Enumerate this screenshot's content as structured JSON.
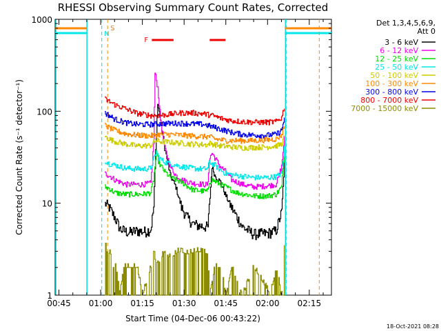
{
  "chart_data": {
    "type": "line",
    "title": "RHESSI Observing Summary Count Rates, Corrected",
    "xlabel": "Start Time (04-Dec-06 00:43:22)",
    "ylabel": "Corrected Count Rate (s⁻¹ detector⁻¹)",
    "y_scale": "log",
    "ylim": [
      1,
      1000
    ],
    "xlim_minutes": [
      -1.37,
      97.97
    ],
    "x_tick_labels": [
      "00:45",
      "01:00",
      "01:15",
      "01:30",
      "01:45",
      "02:00",
      "02:15"
    ],
    "x_tick_minutes": [
      0,
      15,
      30,
      45,
      60,
      75,
      90
    ],
    "y_tick_labels": [
      "1",
      "10",
      "100",
      "1000"
    ],
    "y_tick_values": [
      1,
      10,
      100,
      1000
    ],
    "legend_header": [
      "Det 1,3,4,5,6,9,",
      "Att 0"
    ],
    "legend_placement": "right",
    "timestamp": "18-Oct-2021 08:28",
    "markers": {
      "S": {
        "label": "S",
        "time_minutes": 17.5,
        "color": "#e87a1c"
      },
      "N": {
        "label": "N",
        "time_minutes": 15.5,
        "color": "#00dede"
      },
      "F": {
        "label": "F",
        "color": "#ee0000",
        "intervals_minutes": [
          [
            33.4,
            41.2
          ],
          [
            54.2,
            59.9
          ]
        ]
      },
      "dashed_orange_minutes": [
        17.5,
        93.6
      ],
      "dashed_cyan_minutes": [
        15.4,
        81.8
      ]
    },
    "data_gap_minutes": [
      -1.37,
      16.5
    ],
    "data_end_minutes": 81.2,
    "series": [
      {
        "name": "3 - 6 keV",
        "color": "#000000",
        "points": [
          [
            16.5,
            10
          ],
          [
            18,
            9
          ],
          [
            20,
            7
          ],
          [
            22,
            5.2
          ],
          [
            25,
            4.8
          ],
          [
            28,
            5
          ],
          [
            31,
            4.9
          ],
          [
            33,
            5.2
          ],
          [
            34,
            9
          ],
          [
            35,
            60
          ],
          [
            35.5,
            120
          ],
          [
            36.5,
            80
          ],
          [
            38,
            40
          ],
          [
            40,
            20
          ],
          [
            42,
            15
          ],
          [
            44,
            9
          ],
          [
            46,
            7
          ],
          [
            48,
            6
          ],
          [
            50,
            5.7
          ],
          [
            52,
            5.6
          ],
          [
            53.5,
            5.5
          ],
          [
            54,
            9
          ],
          [
            55,
            25
          ],
          [
            56,
            20
          ],
          [
            58,
            17
          ],
          [
            60,
            12
          ],
          [
            62,
            9
          ],
          [
            64,
            7
          ],
          [
            66,
            5.5
          ],
          [
            70,
            4.6
          ],
          [
            75,
            4.7
          ],
          [
            78,
            5
          ],
          [
            80,
            8
          ],
          [
            81.2,
            35
          ]
        ]
      },
      {
        "name": "6 - 12 keV",
        "color": "#ee00ee",
        "points": [
          [
            16.5,
            21
          ],
          [
            18,
            20
          ],
          [
            20,
            18
          ],
          [
            24,
            16
          ],
          [
            30,
            16
          ],
          [
            33,
            16.5
          ],
          [
            34,
            45
          ],
          [
            34.5,
            260
          ],
          [
            35.5,
            180
          ],
          [
            36.5,
            80
          ],
          [
            38,
            40
          ],
          [
            40,
            25
          ],
          [
            42,
            20
          ],
          [
            44,
            18
          ],
          [
            48,
            16.5
          ],
          [
            52,
            16
          ],
          [
            53.5,
            16
          ],
          [
            54,
            30
          ],
          [
            55,
            35
          ],
          [
            58,
            25
          ],
          [
            60,
            22
          ],
          [
            62,
            18
          ],
          [
            66,
            16
          ],
          [
            70,
            15
          ],
          [
            75,
            15.5
          ],
          [
            78,
            16
          ],
          [
            80,
            25
          ],
          [
            81.2,
            60
          ]
        ]
      },
      {
        "name": "12 - 25 keV",
        "color": "#00dd00",
        "points": [
          [
            16.5,
            15
          ],
          [
            18,
            14.5
          ],
          [
            20,
            13
          ],
          [
            24,
            12.5
          ],
          [
            30,
            12.5
          ],
          [
            33,
            13
          ],
          [
            34,
            18
          ],
          [
            35,
            35
          ],
          [
            36,
            27
          ],
          [
            38,
            22
          ],
          [
            40,
            19
          ],
          [
            44,
            17
          ],
          [
            48,
            14
          ],
          [
            52,
            13.5
          ],
          [
            53.5,
            13.5
          ],
          [
            54,
            17
          ],
          [
            55,
            18
          ],
          [
            58,
            16
          ],
          [
            60,
            15
          ],
          [
            64,
            13
          ],
          [
            70,
            12
          ],
          [
            75,
            12
          ],
          [
            78,
            12.5
          ],
          [
            80,
            15
          ],
          [
            81.2,
            45
          ]
        ]
      },
      {
        "name": "25 - 50 keV",
        "color": "#00e8e8",
        "points": [
          [
            16.5,
            29
          ],
          [
            18,
            27
          ],
          [
            20,
            26
          ],
          [
            24,
            24
          ],
          [
            30,
            23.5
          ],
          [
            33,
            24
          ],
          [
            34,
            30
          ],
          [
            35,
            36
          ],
          [
            36,
            31
          ],
          [
            38,
            28
          ],
          [
            40,
            27
          ],
          [
            44,
            25
          ],
          [
            48,
            24
          ],
          [
            52,
            23.5
          ],
          [
            53.5,
            24
          ],
          [
            54,
            28
          ],
          [
            56,
            26
          ],
          [
            58,
            23
          ],
          [
            60,
            21
          ],
          [
            64,
            20
          ],
          [
            70,
            19
          ],
          [
            75,
            19
          ],
          [
            78,
            19.5
          ],
          [
            80,
            21
          ],
          [
            81.2,
            45
          ]
        ]
      },
      {
        "name": "50 - 100 keV",
        "color": "#cccc00",
        "points": [
          [
            16.5,
            53
          ],
          [
            18,
            50
          ],
          [
            20,
            47
          ],
          [
            24,
            44
          ],
          [
            28,
            42
          ],
          [
            33,
            42.5
          ],
          [
            34,
            46
          ],
          [
            35,
            48
          ],
          [
            36,
            47
          ],
          [
            40,
            46
          ],
          [
            44,
            45
          ],
          [
            48,
            44
          ],
          [
            52,
            43.5
          ],
          [
            53.5,
            43
          ],
          [
            54,
            45
          ],
          [
            58,
            42
          ],
          [
            62,
            41
          ],
          [
            66,
            40
          ],
          [
            70,
            40.5
          ],
          [
            75,
            41
          ],
          [
            78,
            42
          ],
          [
            80,
            44
          ],
          [
            81.2,
            55
          ]
        ]
      },
      {
        "name": "100 - 300 keV",
        "color": "#ff8800",
        "points": [
          [
            16.5,
            70
          ],
          [
            18,
            66
          ],
          [
            20,
            62
          ],
          [
            24,
            57
          ],
          [
            28,
            55
          ],
          [
            33,
            54
          ],
          [
            36,
            56
          ],
          [
            40,
            56
          ],
          [
            44,
            55
          ],
          [
            48,
            54
          ],
          [
            52,
            53
          ],
          [
            54,
            53
          ],
          [
            56,
            50
          ],
          [
            60,
            48
          ],
          [
            64,
            48
          ],
          [
            70,
            48
          ],
          [
            75,
            49
          ],
          [
            78,
            50
          ],
          [
            80,
            55
          ],
          [
            81.2,
            75
          ]
        ]
      },
      {
        "name": "300 - 800 keV",
        "color": "#0000ee",
        "points": [
          [
            16.5,
            96
          ],
          [
            18,
            90
          ],
          [
            20,
            82
          ],
          [
            24,
            75
          ],
          [
            28,
            72
          ],
          [
            33,
            72
          ],
          [
            36,
            73
          ],
          [
            40,
            74
          ],
          [
            44,
            74
          ],
          [
            48,
            73
          ],
          [
            52,
            72
          ],
          [
            55,
            68
          ],
          [
            58,
            64
          ],
          [
            62,
            59
          ],
          [
            66,
            56
          ],
          [
            70,
            55
          ],
          [
            75,
            55
          ],
          [
            78,
            56
          ],
          [
            80,
            62
          ],
          [
            81.2,
            90
          ]
        ]
      },
      {
        "name": "800 - 7000 keV",
        "color": "#ee0000",
        "points": [
          [
            16.5,
            135
          ],
          [
            18,
            128
          ],
          [
            20,
            118
          ],
          [
            24,
            106
          ],
          [
            28,
            95
          ],
          [
            33,
            90
          ],
          [
            36,
            90
          ],
          [
            40,
            93
          ],
          [
            44,
            96
          ],
          [
            48,
            96
          ],
          [
            52,
            94
          ],
          [
            55,
            90
          ],
          [
            58,
            84
          ],
          [
            62,
            79
          ],
          [
            66,
            77
          ],
          [
            70,
            76
          ],
          [
            75,
            76
          ],
          [
            78,
            77
          ],
          [
            80,
            85
          ],
          [
            81.2,
            120
          ]
        ]
      },
      {
        "name": "7000 - 15000 keV",
        "color": "#8b8b00",
        "points": [
          [
            16.5,
            4.5
          ],
          [
            17,
            3
          ],
          [
            18.5,
            2.8
          ],
          [
            19.5,
            2
          ],
          [
            20.5,
            2
          ],
          [
            22,
            1
          ],
          [
            23,
            2
          ],
          [
            28,
            2
          ],
          [
            30,
            1
          ],
          [
            33,
            2
          ],
          [
            34,
            3
          ],
          [
            35,
            2
          ],
          [
            38,
            3
          ],
          [
            40,
            2.5
          ],
          [
            43,
            3
          ],
          [
            46,
            2.8
          ],
          [
            50,
            3
          ],
          [
            53.5,
            2.8
          ],
          [
            54,
            1
          ],
          [
            56,
            2
          ],
          [
            58,
            2
          ],
          [
            60,
            1
          ],
          [
            62,
            2
          ],
          [
            66,
            1
          ],
          [
            70,
            2
          ],
          [
            76,
            1
          ],
          [
            78,
            2
          ],
          [
            80,
            1
          ],
          [
            81.2,
            4
          ]
        ]
      }
    ]
  }
}
